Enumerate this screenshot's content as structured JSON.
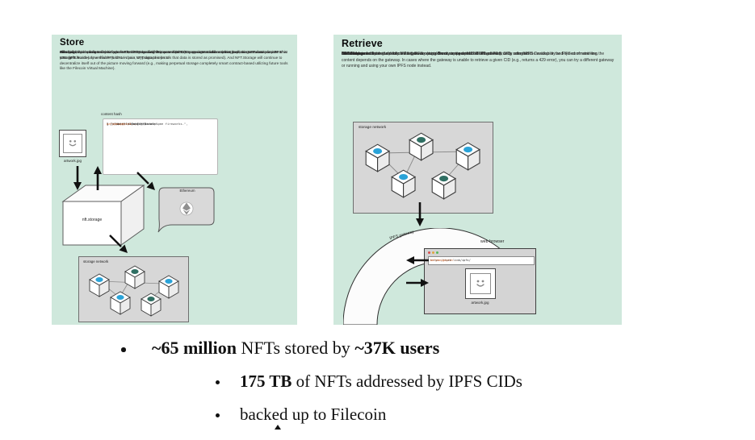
{
  "store": {
    "title": "Store",
    "paragraphs": [
      [
        {
          "t": "Just upload your data and you'll receive an IPFS hash of the content (a \"CID\", or content address) that you can use to make an IPFS URL (ipfs://<cid>). Use this IPFS URL in your NFT data to refer to "
        },
        {
          "t": "off-chain",
          "b": true
        },
        {
          "t": " data (e.g., the metadata field in your NFT, the image field in your metadata) as a pointer to the content itself, so no one can dispute what your NFT is."
        }
      ],
      [
        {
          "t": "Filecoin provides long-term storage for the data ensuring that even if NFT.Storage is attacked or taken down the NFT data persists! This storage is trustlessly verifiable (with on-chain, cryptographic proofs that data is stored as promised). And NFT.Storage will continue to decentralize itself out of the picture moving forward (e.g., making perpetual storage completely smart contract-based utilizing future tools like the Filecoin Virtual Machine)."
        }
      ],
      [
        {
          "t": "Have additional preferences on where to store your data? Pin your data to any storage solution running a pinning service."
        }
      ]
    ],
    "content_hash_label": "content hash",
    "code_lines": [
      [
        {
          "t": "{"
        }
      ],
      [
        {
          "t": "  \"title\": \"Asset Metadata\","
        }
      ],
      [
        {
          "t": "  \"type\": \"object\","
        }
      ],
      [
        {
          "t": "  \"properties\": {"
        }
      ],
      [
        {
          "t": "    \"name\": \"Galaxy View\","
        }
      ],
      [
        {
          "t": "    \"description\": \"An awesome fireworks.\","
        }
      ],
      [
        {
          "t": "    \"image\": \"ipfs://"
        },
        {
          "t": "bafybeigdyrzt...",
          "c": "orange"
        },
        {
          "t": "\""
        }
      ],
      [
        {
          "t": "  }"
        }
      ],
      [
        {
          "t": "}"
        }
      ]
    ],
    "artwork_label": "artwork.jpg",
    "cube_label": "nft.storage",
    "ethereum_label": "Ethereum",
    "network_label": "storage network"
  },
  "retrieve": {
    "title": "Retrieve",
    "paragraphs": [
      [
        {
          "t": "NFT data stored by "
        },
        {
          "t": "NFT.Storage",
          "b": true
        },
        {
          "t": " can be accessed from the decentralized IPFS network from any peer that has the content. CIDs reference "
        },
        {
          "t": "immutable",
          "b": true
        },
        {
          "t": " content so you can be sure the content you access is the content referenced in the NFT."
        }
      ],
      [
        {
          "t": "The data can be fetched directly in the browser using Brave, or via a public IPFS gateway, or by using IPFS Desktop or the IPFS command line."
        }
      ],
      [
        {
          "t": "If fetching content using a public IPFS gateway (e.g., directly using an HTTP URL or via Brave), note that the availability and speed of retrieving the content depends on the gateway. In cases where the gateway is unable to retrieve a given CID (e.g., returns a 429 error), you can try a different gateway or running and using your own IPFS node instead."
        }
      ]
    ],
    "network_label": "storage network",
    "gateway_label": "IPFS gateway",
    "browser_label": "web browser",
    "url": [
      {
        "t": "https://dweb.link/ipfs/"
      },
      {
        "t": "bafybeigdyrzt...",
        "c": "orange"
      }
    ],
    "artwork_label": "artwork.jpg"
  },
  "bullets": [
    {
      "segments": [
        {
          "t": "~65 million",
          "b": true
        },
        {
          "t": " NFTs stored by "
        },
        {
          "t": "~37K users",
          "b": true
        }
      ]
    },
    {
      "segments": [
        {
          "t": "175 TB",
          "b": true
        },
        {
          "t": " of NFTs addressed by IPFS CIDs"
        }
      ]
    },
    {
      "segments": [
        {
          "t": "backed up to Filecoin"
        }
      ]
    }
  ],
  "colors": {
    "panel_bg": "#cfe8dc",
    "box_gray": "#d7d7d7",
    "accent_orange": "#e06c2e",
    "node_dot_blue": "#2aa3d8",
    "node_dot_teal": "#2f6f63"
  }
}
